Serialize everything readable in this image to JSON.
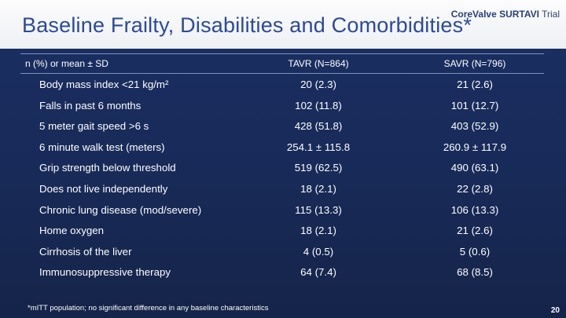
{
  "slide": {
    "title": "Baseline Frailty, Disabilities and Comorbidities*",
    "logo_text_bold": "CoreValve SURTAVI",
    "logo_text_rest": " Trial",
    "footnote": "*mITT population; no significant difference in any baseline characteristics",
    "page_number": "20"
  },
  "table": {
    "header": {
      "label": "n (%) or mean ± SD",
      "tavr": "TAVR (N=864)",
      "savr": "SAVR (N=796)"
    },
    "rows": [
      {
        "label": "Body mass index <21 kg/m²",
        "tavr": "20 (2.3)",
        "savr": "21 (2.6)"
      },
      {
        "label": "Falls in past 6 months",
        "tavr": "102 (11.8)",
        "savr": "101 (12.7)"
      },
      {
        "label": "5 meter gait speed >6 s",
        "tavr": "428 (51.8)",
        "savr": "403 (52.9)"
      },
      {
        "label": "6 minute walk test (meters)",
        "tavr": "254.1 ± 115.8",
        "savr": "260.9 ± 117.9"
      },
      {
        "label": "Grip strength below threshold",
        "tavr": "519 (62.5)",
        "savr": "490 (63.1)"
      },
      {
        "label": "Does not live independently",
        "tavr": "18 (2.1)",
        "savr": "22 (2.8)"
      },
      {
        "label": "Chronic lung disease (mod/severe)",
        "tavr": "115 (13.3)",
        "savr": "106 (13.3)"
      },
      {
        "label": "Home oxygen",
        "tavr": "18 (2.1)",
        "savr": "21 (2.6)"
      },
      {
        "label": "Cirrhosis of the liver",
        "tavr": "4 (0.5)",
        "savr": "5 (0.6)"
      },
      {
        "label": "Immunosuppressive therapy",
        "tavr": "64 (7.4)",
        "savr": "68 (8.5)"
      }
    ]
  }
}
